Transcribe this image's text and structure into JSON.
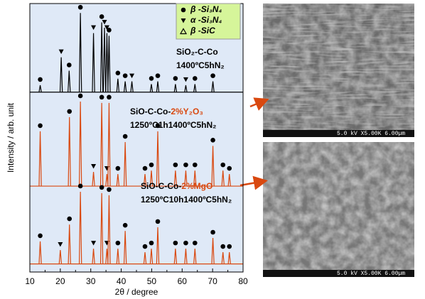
{
  "chart_data": {
    "type": "line",
    "x_label": "2θ / degree",
    "y_label": "Intensity / arb. unit",
    "xlim": [
      10,
      80
    ],
    "xticks": [
      10,
      20,
      30,
      40,
      50,
      60,
      70,
      80
    ],
    "ylim": [
      0,
      100
    ],
    "legend": {
      "corner": "top-right",
      "items": [
        {
          "symbol": "circle",
          "label": "β -Si₃N₄"
        },
        {
          "symbol": "down-triangle",
          "label": "α -Si₃N₄"
        },
        {
          "symbol": "open-triangle",
          "label": "β -SiC"
        }
      ]
    },
    "series": [
      {
        "color": "#000000",
        "baseline": 67,
        "x": [
          13.4,
          20.3,
          22.9,
          26.6,
          30.9,
          33.6,
          34.5,
          35.3,
          36.0,
          38.9,
          41.3,
          43.5,
          49.9,
          52.0,
          57.8,
          61.2,
          64.2,
          70.1
        ],
        "values": [
          69.6,
          80,
          75,
          96.5,
          89,
          93,
          91,
          89,
          88,
          72,
          71,
          71,
          70,
          71,
          70,
          69.6,
          70,
          71
        ],
        "markers": [
          "circle",
          "down-triangle",
          "circle",
          "circle",
          "down-triangle",
          "circle",
          "down-triangle",
          "down-triangle",
          "circle",
          "circle",
          "circle",
          "down-triangle",
          "circle",
          "circle",
          "circle",
          "down-triangle",
          "circle",
          "circle"
        ]
      },
      {
        "color": "#d9480f",
        "baseline": 32,
        "x": [
          13.4,
          23.0,
          26.6,
          30.9,
          33.6,
          35.3,
          36.0,
          38.9,
          41.3,
          47.8,
          49.9,
          52.0,
          57.8,
          61.2,
          64.2,
          70.1,
          73.4,
          75.5
        ],
        "values": [
          52.4,
          57.7,
          63.5,
          37.3,
          63,
          36.5,
          63,
          36.5,
          48.4,
          36.5,
          37.8,
          52.4,
          37.8,
          37.8,
          37.8,
          47,
          37.8,
          36.5
        ],
        "markers": [
          "circle",
          "circle",
          "circle",
          "down-triangle",
          "circle",
          "down-triangle",
          "circle",
          "circle",
          "circle",
          "circle",
          "circle",
          "circle",
          "circle",
          "circle",
          "circle",
          "circle",
          "circle",
          "circle"
        ]
      },
      {
        "color": "#d9480f",
        "baseline": 3,
        "x": [
          13.4,
          20.0,
          23.0,
          26.6,
          30.9,
          33.6,
          35.3,
          36.0,
          38.9,
          41.3,
          47.8,
          49.9,
          52.0,
          57.8,
          61.2,
          64.2,
          70.1,
          73.4,
          75.5
        ],
        "values": [
          11.4,
          8.2,
          17.7,
          29.9,
          8.7,
          29.4,
          8.7,
          28.6,
          8.7,
          15.3,
          7.4,
          8.7,
          16.7,
          8.7,
          8.7,
          8.7,
          12.7,
          7.4,
          7.4
        ],
        "markers": [
          "circle",
          "down-triangle",
          "circle",
          "circle",
          "down-triangle",
          "circle",
          "down-triangle",
          "circle",
          "circle",
          "circle",
          "circle",
          "circle",
          "circle",
          "circle",
          "circle",
          "circle",
          "circle",
          "circle",
          "circle"
        ]
      }
    ],
    "annotations": [
      {
        "parts": [
          {
            "text": "SiO₂-C-Co",
            "color": "#000000"
          }
        ]
      },
      {
        "parts": [
          {
            "text": "1400ºC5hN₂",
            "color": "#000000"
          }
        ]
      },
      {
        "parts": [
          {
            "text": "SiO-C-Co-",
            "color": "#000000"
          },
          {
            "text": "2%Y₂O₃",
            "color": "#d9480f"
          }
        ]
      },
      {
        "parts": [
          {
            "text": "1250ºC1h1400ºC5hN₂",
            "color": "#000000"
          }
        ]
      },
      {
        "parts": [
          {
            "text": "SiO-C-Co-",
            "color": "#000000"
          },
          {
            "text": "2%MgO",
            "color": "#d9480f"
          }
        ]
      },
      {
        "parts": [
          {
            "text": "1250ºC10h1400ºC5hN₂",
            "color": "#000000"
          }
        ]
      }
    ]
  },
  "images": [
    {
      "caption": "5.0 kV X5.00K 6.00µm"
    },
    {
      "caption": "5.0 kV X5.00K 6.00µm"
    }
  ]
}
